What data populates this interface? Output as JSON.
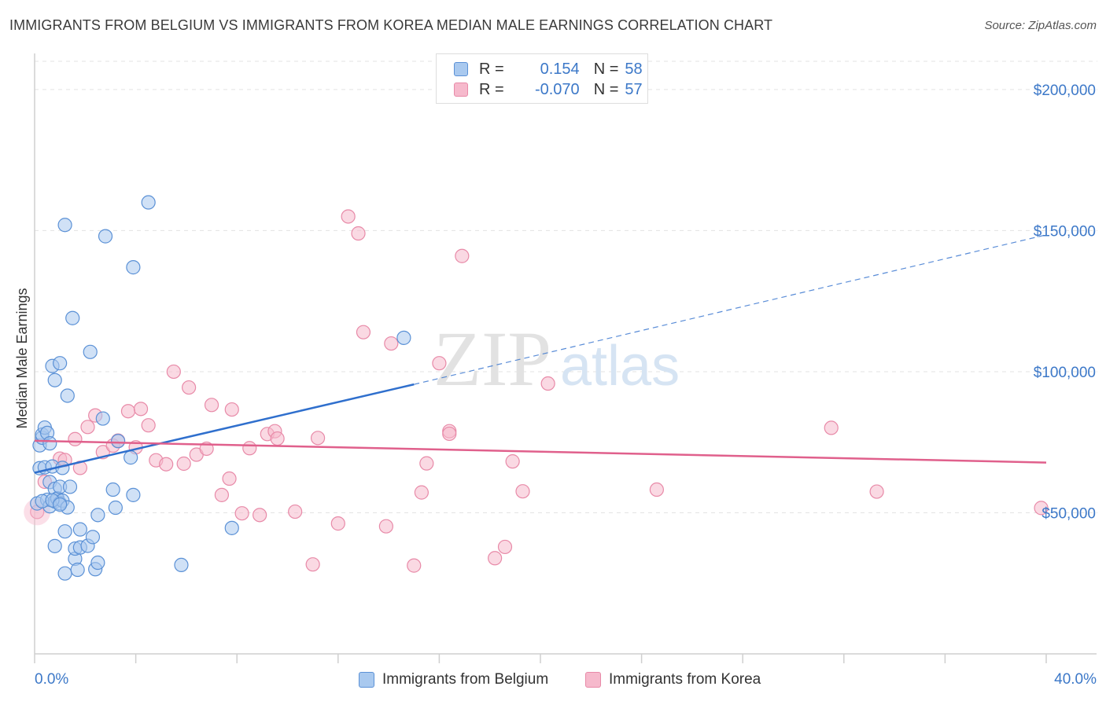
{
  "title": "IMMIGRANTS FROM BELGIUM VS IMMIGRANTS FROM KOREA MEDIAN MALE EARNINGS CORRELATION CHART",
  "source": "Source: ZipAtlas.com",
  "watermark": {
    "zip": "ZIP",
    "atlas": "atlas"
  },
  "colors": {
    "belgium_fill": "#a9c9ef",
    "belgium_stroke": "#5b91d6",
    "belgium_line": "#2f6fcd",
    "korea_fill": "#f6b9cc",
    "korea_stroke": "#e88aa8",
    "korea_line": "#e0608c",
    "accent_text": "#3c78c8"
  },
  "legend": {
    "belgium": {
      "r_label": "R =",
      "r_value": "0.154",
      "n_label": "N =",
      "n_value": "58"
    },
    "korea": {
      "r_label": "R =",
      "r_value": "-0.070",
      "n_label": "N =",
      "n_value": "57"
    }
  },
  "bottom_legend": {
    "belgium": "Immigrants from Belgium",
    "korea": "Immigrants from Korea"
  },
  "chart_data": {
    "type": "scatter",
    "title": "IMMIGRANTS FROM BELGIUM VS IMMIGRANTS FROM KOREA MEDIAN MALE EARNINGS CORRELATION CHART",
    "xlabel": "",
    "ylabel": "Median Male Earnings",
    "xlim": [
      0,
      40
    ],
    "ylim": [
      0,
      210000
    ],
    "x_tick_labels": {
      "min": "0.0%",
      "max": "40.0%"
    },
    "y_ticks": [
      {
        "value": 50000,
        "label": "$50,000"
      },
      {
        "value": 100000,
        "label": "$100,000"
      },
      {
        "value": 150000,
        "label": "$150,000"
      },
      {
        "value": 200000,
        "label": "$200,000"
      }
    ],
    "grid": true,
    "series": [
      {
        "name": "Immigrants from Belgium",
        "points": [
          [
            0.1,
            53300
          ],
          [
            0.2,
            65800
          ],
          [
            0.2,
            73900
          ],
          [
            0.3,
            76600
          ],
          [
            0.3,
            77700
          ],
          [
            0.4,
            80200
          ],
          [
            0.4,
            66100
          ],
          [
            0.5,
            78300
          ],
          [
            0.5,
            54600
          ],
          [
            0.6,
            52300
          ],
          [
            0.6,
            74600
          ],
          [
            0.6,
            60900
          ],
          [
            0.7,
            102000
          ],
          [
            0.7,
            66400
          ],
          [
            0.8,
            54000
          ],
          [
            0.8,
            58500
          ],
          [
            0.8,
            38200
          ],
          [
            0.8,
            97000
          ],
          [
            0.9,
            55100
          ],
          [
            0.9,
            55000
          ],
          [
            1.0,
            103000
          ],
          [
            1.0,
            53400
          ],
          [
            1.0,
            59200
          ],
          [
            1.1,
            65900
          ],
          [
            1.1,
            54300
          ],
          [
            1.2,
            152000
          ],
          [
            1.2,
            28500
          ],
          [
            1.2,
            43400
          ],
          [
            1.3,
            91500
          ],
          [
            1.3,
            51900
          ],
          [
            1.4,
            59200
          ],
          [
            1.5,
            119000
          ],
          [
            1.6,
            33700
          ],
          [
            1.6,
            37300
          ],
          [
            1.7,
            29800
          ],
          [
            1.8,
            44100
          ],
          [
            1.8,
            37700
          ],
          [
            2.1,
            38300
          ],
          [
            2.2,
            107000
          ],
          [
            2.3,
            41400
          ],
          [
            2.4,
            30000
          ],
          [
            2.5,
            49200
          ],
          [
            2.5,
            32300
          ],
          [
            2.7,
            83400
          ],
          [
            2.8,
            148000
          ],
          [
            3.1,
            58200
          ],
          [
            3.2,
            51800
          ],
          [
            3.3,
            75400
          ],
          [
            3.8,
            69600
          ],
          [
            3.9,
            56300
          ],
          [
            3.9,
            137000
          ],
          [
            4.5,
            160000
          ],
          [
            5.8,
            31500
          ],
          [
            7.8,
            44600
          ],
          [
            14.6,
            112000
          ],
          [
            0.3,
            54100
          ],
          [
            0.7,
            54400
          ],
          [
            1.0,
            52900
          ]
        ],
        "trend": {
          "x_start": 0,
          "y_start": 64200,
          "x_solid_end": 15.0,
          "y_solid_end": 95500,
          "x_dash_end": 40,
          "y_dash_end": 148500
        }
      },
      {
        "name": "Immigrants from Korea",
        "points": [
          [
            0.1,
            50300
          ],
          [
            0.4,
            61000
          ],
          [
            1.0,
            69200
          ],
          [
            1.2,
            68700
          ],
          [
            1.6,
            76100
          ],
          [
            1.8,
            65900
          ],
          [
            2.1,
            80400
          ],
          [
            2.4,
            84500
          ],
          [
            2.7,
            71500
          ],
          [
            3.1,
            73800
          ],
          [
            3.3,
            75600
          ],
          [
            3.7,
            86000
          ],
          [
            4.0,
            73200
          ],
          [
            4.2,
            86800
          ],
          [
            4.5,
            81000
          ],
          [
            4.8,
            68600
          ],
          [
            5.2,
            67200
          ],
          [
            5.5,
            100000
          ],
          [
            5.9,
            67400
          ],
          [
            6.1,
            94400
          ],
          [
            6.4,
            70600
          ],
          [
            6.8,
            72700
          ],
          [
            7.0,
            88200
          ],
          [
            7.4,
            56300
          ],
          [
            7.7,
            62100
          ],
          [
            7.8,
            86600
          ],
          [
            8.2,
            49800
          ],
          [
            8.5,
            72900
          ],
          [
            8.9,
            49200
          ],
          [
            9.2,
            77900
          ],
          [
            9.5,
            78900
          ],
          [
            9.6,
            76300
          ],
          [
            10.3,
            50400
          ],
          [
            11.0,
            31700
          ],
          [
            11.2,
            76500
          ],
          [
            12.0,
            46200
          ],
          [
            12.4,
            155000
          ],
          [
            12.8,
            149000
          ],
          [
            13.0,
            114000
          ],
          [
            13.9,
            45200
          ],
          [
            14.1,
            110000
          ],
          [
            15.0,
            31300
          ],
          [
            15.3,
            57200
          ],
          [
            15.5,
            67500
          ],
          [
            16.0,
            103000
          ],
          [
            16.4,
            78900
          ],
          [
            16.4,
            78000
          ],
          [
            16.9,
            141000
          ],
          [
            18.2,
            33900
          ],
          [
            18.6,
            37900
          ],
          [
            18.9,
            68200
          ],
          [
            19.3,
            57600
          ],
          [
            20.3,
            95800
          ],
          [
            24.6,
            58200
          ],
          [
            31.5,
            80100
          ],
          [
            33.3,
            57500
          ],
          [
            39.8,
            51700
          ]
        ],
        "trend": {
          "x_start": 0,
          "y_start": 75500,
          "x_end": 40,
          "y_end": 67800
        }
      }
    ]
  }
}
